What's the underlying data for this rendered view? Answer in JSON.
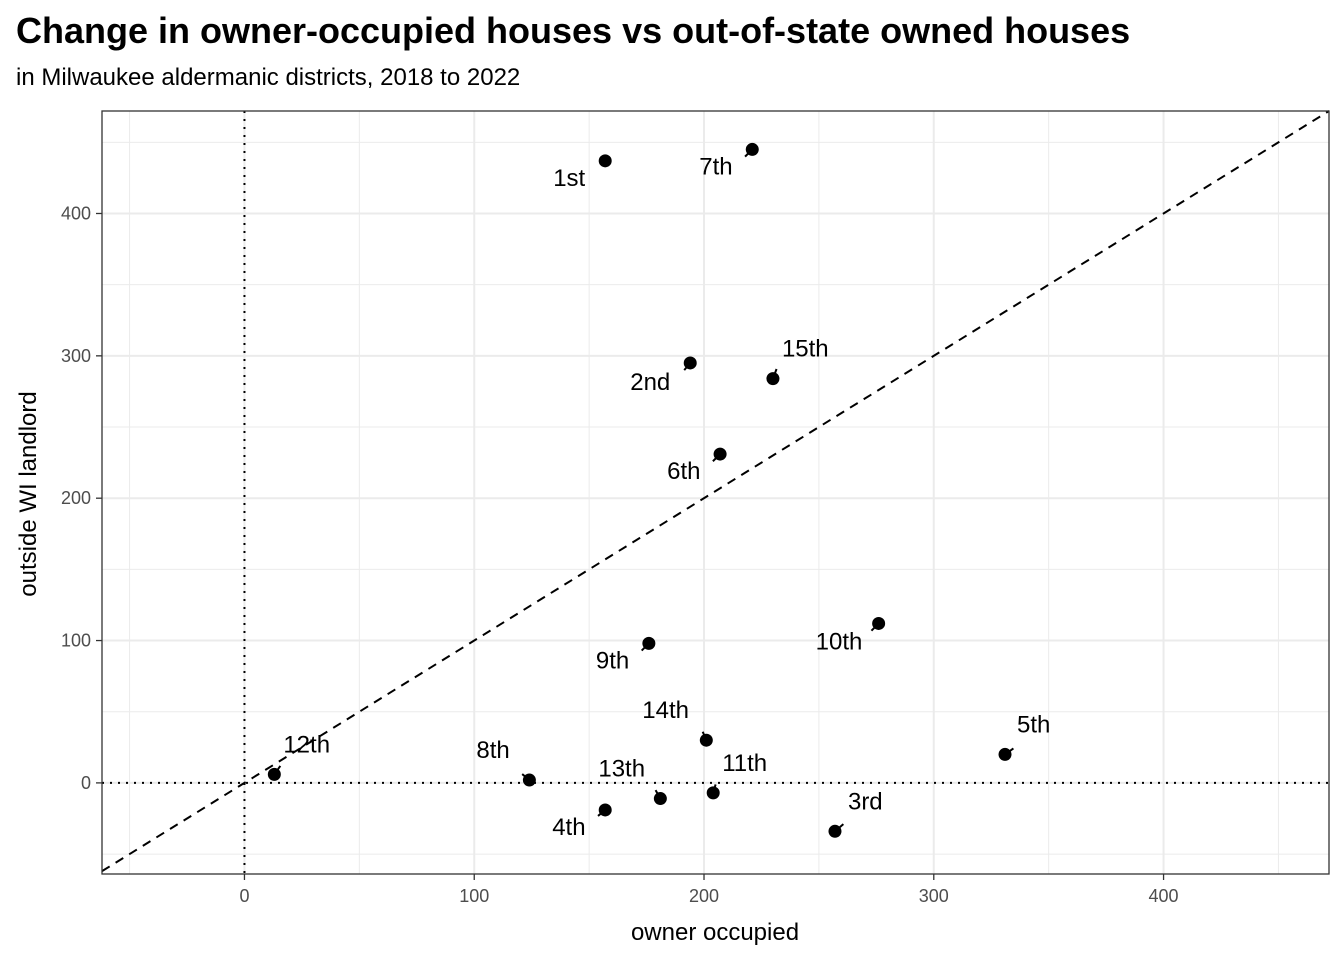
{
  "chart_data": {
    "type": "scatter",
    "title": "Change in owner-occupied houses vs out-of-state owned houses",
    "subtitle": "in Milwaukee aldermanic districts, 2018 to 2022",
    "xlabel": "owner occupied",
    "ylabel": "outside WI landlord",
    "xlim": [
      -62,
      472
    ],
    "ylim": [
      -64,
      472
    ],
    "xticks": [
      0,
      100,
      200,
      300,
      400
    ],
    "yticks": [
      0,
      100,
      200,
      300,
      400
    ],
    "grid": true,
    "reference_lines": {
      "diagonal": "y = x (dashed)",
      "vertical": "x = 0 (dotted)",
      "horizontal": "y = 0 (dotted)"
    },
    "points": [
      {
        "label": "1st",
        "x": 157,
        "y": 437
      },
      {
        "label": "2nd",
        "x": 194,
        "y": 295
      },
      {
        "label": "3rd",
        "x": 257,
        "y": -34
      },
      {
        "label": "4th",
        "x": 157,
        "y": -19
      },
      {
        "label": "5th",
        "x": 331,
        "y": 20
      },
      {
        "label": "6th",
        "x": 207,
        "y": 231
      },
      {
        "label": "7th",
        "x": 221,
        "y": 445
      },
      {
        "label": "8th",
        "x": 124,
        "y": 2
      },
      {
        "label": "9th",
        "x": 176,
        "y": 98
      },
      {
        "label": "10th",
        "x": 276,
        "y": 112
      },
      {
        "label": "11th",
        "x": 204,
        "y": -7
      },
      {
        "label": "12th",
        "x": 13,
        "y": 6
      },
      {
        "label": "13th",
        "x": 181,
        "y": -11
      },
      {
        "label": "14th",
        "x": 201,
        "y": 30
      },
      {
        "label": "15th",
        "x": 230,
        "y": 284
      }
    ]
  }
}
